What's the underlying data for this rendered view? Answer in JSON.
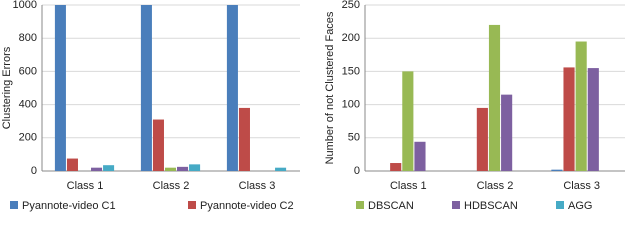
{
  "chart_data": [
    {
      "type": "bar",
      "ylabel": "Clustering Errors",
      "categories": [
        "Class 1",
        "Class 2",
        "Class 3"
      ],
      "ylim": [
        0,
        1000
      ],
      "yticks": [
        0,
        200,
        400,
        600,
        800,
        1000
      ],
      "grid": true,
      "series": [
        {
          "name": "Pyannote-video C1",
          "color": "#4a7ebb",
          "values": [
            1000,
            1000,
            1000
          ]
        },
        {
          "name": "Pyannote-video C2",
          "color": "#be4b48",
          "values": [
            75,
            310,
            380
          ]
        },
        {
          "name": "DBSCAN",
          "color": "#98b954",
          "values": [
            null,
            20,
            null
          ]
        },
        {
          "name": "HDBSCAN",
          "color": "#7d60a0",
          "values": [
            20,
            25,
            null
          ]
        },
        {
          "name": "AGG",
          "color": "#46aac5",
          "values": [
            35,
            40,
            20
          ]
        }
      ]
    },
    {
      "type": "bar",
      "ylabel": "Number of not Clustered Faces",
      "categories": [
        "Class 1",
        "Class 2",
        "Class 3"
      ],
      "ylim": [
        0,
        250
      ],
      "yticks": [
        0,
        50,
        100,
        150,
        200,
        250
      ],
      "grid": true,
      "series": [
        {
          "name": "Pyannote-video C1",
          "color": "#4a7ebb",
          "values": [
            null,
            null,
            2
          ]
        },
        {
          "name": "Pyannote-video C2",
          "color": "#be4b48",
          "values": [
            12,
            95,
            156
          ]
        },
        {
          "name": "DBSCAN",
          "color": "#98b954",
          "values": [
            150,
            220,
            195
          ]
        },
        {
          "name": "HDBSCAN",
          "color": "#7d60a0",
          "values": [
            44,
            115,
            155
          ]
        },
        {
          "name": "AGG",
          "color": "#46aac5",
          "values": [
            null,
            null,
            null
          ]
        }
      ]
    }
  ]
}
